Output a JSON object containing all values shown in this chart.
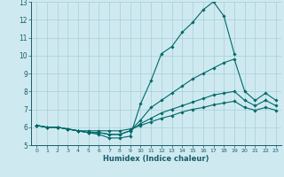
{
  "xlabel": "Humidex (Indice chaleur)",
  "background_color": "#ceeaf0",
  "grid_color": "#aacdd8",
  "line_color": "#006868",
  "xlim": [
    -0.5,
    23.5
  ],
  "ylim": [
    5,
    13
  ],
  "yticks": [
    5,
    6,
    7,
    8,
    9,
    10,
    11,
    12,
    13
  ],
  "xticks": [
    0,
    1,
    2,
    3,
    4,
    5,
    6,
    7,
    8,
    9,
    10,
    11,
    12,
    13,
    14,
    15,
    16,
    17,
    18,
    19,
    20,
    21,
    22,
    23
  ],
  "series": [
    {
      "x": [
        0,
        1,
        2,
        3,
        4,
        5,
        6,
        7,
        8,
        9,
        10,
        11,
        12,
        13,
        14,
        15,
        16,
        17,
        18,
        19,
        20,
        21,
        22,
        23
      ],
      "y": [
        6.1,
        6.0,
        6.0,
        5.9,
        5.8,
        5.7,
        5.6,
        5.4,
        5.4,
        5.5,
        7.3,
        8.6,
        10.1,
        10.5,
        11.3,
        11.85,
        12.55,
        13.0,
        12.2,
        10.1,
        null,
        null,
        null,
        null
      ]
    },
    {
      "x": [
        0,
        1,
        2,
        3,
        4,
        5,
        6,
        7,
        8,
        9,
        10,
        11,
        12,
        13,
        14,
        15,
        16,
        17,
        18,
        19,
        20,
        21,
        22,
        23
      ],
      "y": [
        6.1,
        6.0,
        6.0,
        5.9,
        5.8,
        5.7,
        5.7,
        5.6,
        5.6,
        5.8,
        6.4,
        7.1,
        7.5,
        7.9,
        8.3,
        8.7,
        9.0,
        9.3,
        9.6,
        9.8,
        8.0,
        7.5,
        7.9,
        7.5
      ]
    },
    {
      "x": [
        0,
        1,
        2,
        3,
        4,
        5,
        6,
        7,
        8,
        9,
        10,
        11,
        12,
        13,
        14,
        15,
        16,
        17,
        18,
        19,
        20,
        21,
        22,
        23
      ],
      "y": [
        6.1,
        6.0,
        6.0,
        5.9,
        5.8,
        5.7,
        5.7,
        5.6,
        5.6,
        5.8,
        6.2,
        6.5,
        6.8,
        7.0,
        7.2,
        7.4,
        7.6,
        7.8,
        7.9,
        8.0,
        7.5,
        7.2,
        7.5,
        7.2
      ]
    },
    {
      "x": [
        0,
        1,
        2,
        3,
        4,
        5,
        6,
        7,
        8,
        9,
        10,
        11,
        12,
        13,
        14,
        15,
        16,
        17,
        18,
        19,
        20,
        21,
        22,
        23
      ],
      "y": [
        6.1,
        6.0,
        6.0,
        5.9,
        5.8,
        5.8,
        5.8,
        5.8,
        5.8,
        5.9,
        6.1,
        6.3,
        6.5,
        6.65,
        6.85,
        7.0,
        7.1,
        7.25,
        7.35,
        7.45,
        7.1,
        6.95,
        7.1,
        6.95
      ]
    }
  ]
}
